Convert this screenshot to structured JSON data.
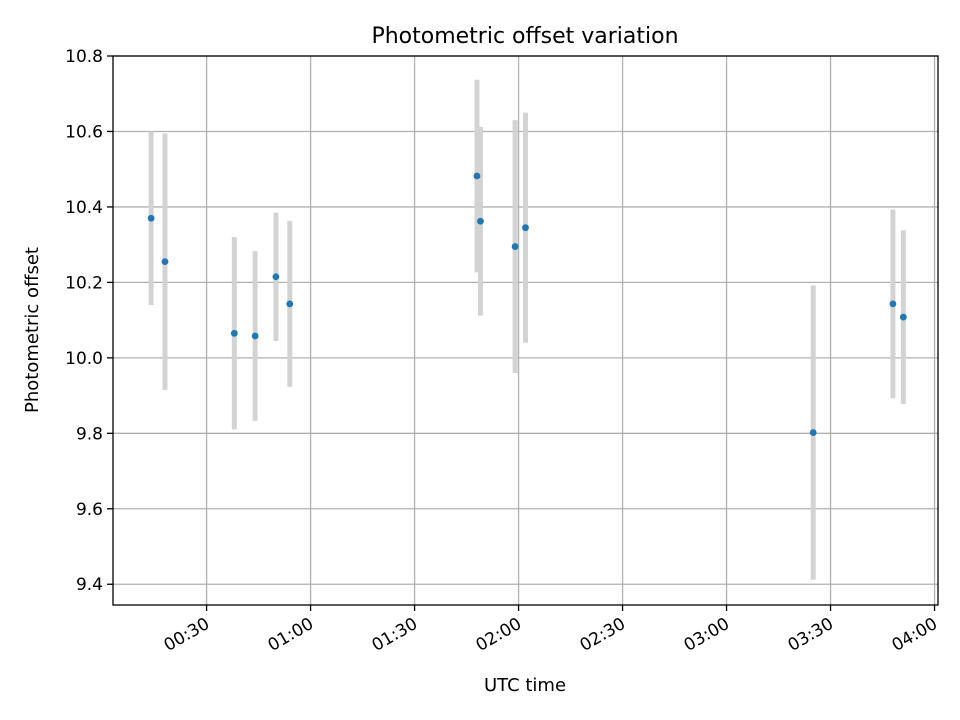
{
  "chart_data": {
    "type": "scatter",
    "title": "Photometric offset variation",
    "xlabel": "UTC time",
    "ylabel": "Photometric offset",
    "x_ticks": [
      "00:30",
      "01:00",
      "01:30",
      "02:00",
      "02:30",
      "03:00",
      "03:30",
      "04:00"
    ],
    "y_ticks": [
      "9.4",
      "9.6",
      "9.8",
      "10.0",
      "10.2",
      "10.4",
      "10.6",
      "10.8"
    ],
    "xlim": [
      "00:03",
      "04:01"
    ],
    "ylim": [
      9.345,
      10.8
    ],
    "grid": true,
    "marker_color": "#1f77b4",
    "errorbar_color": "#d3d3d3",
    "points": [
      {
        "t": "00:14",
        "y": 10.37,
        "err": 0.23
      },
      {
        "t": "00:18",
        "y": 10.255,
        "err": 0.34
      },
      {
        "t": "00:38",
        "y": 10.065,
        "err": 0.255
      },
      {
        "t": "00:44",
        "y": 10.058,
        "err": 0.225
      },
      {
        "t": "00:50",
        "y": 10.215,
        "err": 0.17
      },
      {
        "t": "00:54",
        "y": 10.143,
        "err": 0.22
      },
      {
        "t": "01:48",
        "y": 10.482,
        "err": 0.255
      },
      {
        "t": "01:49",
        "y": 10.362,
        "err": 0.25
      },
      {
        "t": "01:59",
        "y": 10.295,
        "err": 0.335
      },
      {
        "t": "02:02",
        "y": 10.345,
        "err": 0.305
      },
      {
        "t": "03:25",
        "y": 9.802,
        "err": 0.39
      },
      {
        "t": "03:48",
        "y": 10.143,
        "err": 0.25
      },
      {
        "t": "03:51",
        "y": 10.108,
        "err": 0.23
      }
    ]
  }
}
